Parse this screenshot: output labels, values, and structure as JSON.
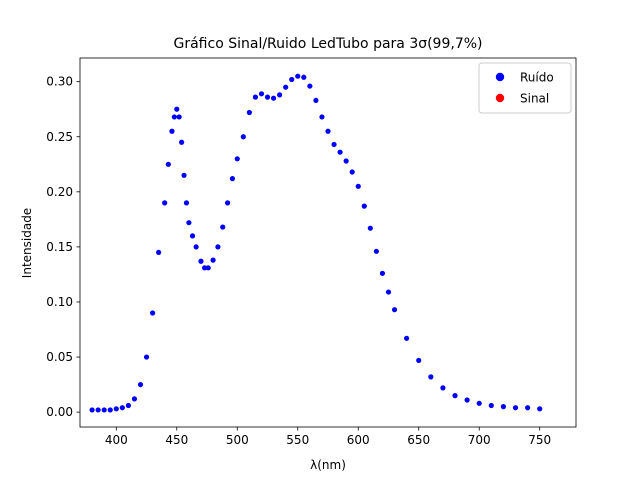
{
  "chart_data": {
    "type": "scatter",
    "title": "Gráfico Sinal/Ruido LedTubo para 3σ(99,7%)",
    "xlabel": "λ(nm)",
    "ylabel": "Intensidade",
    "xlim": [
      370,
      780
    ],
    "ylim": [
      -0.0135,
      0.3215
    ],
    "xticks": [
      400,
      450,
      500,
      550,
      600,
      650,
      700,
      750
    ],
    "yticks": [
      0.0,
      0.05,
      0.1,
      0.15,
      0.2,
      0.25,
      0.3
    ],
    "xtick_labels": [
      "400",
      "450",
      "500",
      "550",
      "600",
      "650",
      "700",
      "750"
    ],
    "ytick_labels": [
      "0.00",
      "0.05",
      "0.10",
      "0.15",
      "0.20",
      "0.25",
      "0.30"
    ],
    "grid": false,
    "legend_position": "top-right",
    "series": [
      {
        "name": "Ruído",
        "color": "#0000ff",
        "x": [
          380,
          385,
          390,
          395,
          400,
          405,
          410,
          415,
          420,
          425,
          430,
          435,
          440,
          443,
          446,
          448,
          450,
          452,
          454,
          456,
          458,
          460,
          463,
          466,
          470,
          473,
          476,
          480,
          484,
          488,
          492,
          496,
          500,
          505,
          510,
          515,
          520,
          525,
          530,
          535,
          540,
          545,
          550,
          555,
          560,
          565,
          570,
          575,
          580,
          585,
          590,
          595,
          600,
          605,
          610,
          615,
          620,
          625,
          630,
          640,
          650,
          660,
          670,
          680,
          690,
          700,
          710,
          720,
          730,
          740,
          750
        ],
        "y": [
          0.002,
          0.002,
          0.002,
          0.002,
          0.003,
          0.004,
          0.006,
          0.012,
          0.025,
          0.05,
          0.09,
          0.145,
          0.19,
          0.225,
          0.255,
          0.268,
          0.275,
          0.268,
          0.245,
          0.215,
          0.19,
          0.172,
          0.16,
          0.15,
          0.137,
          0.131,
          0.131,
          0.138,
          0.15,
          0.168,
          0.19,
          0.212,
          0.23,
          0.25,
          0.272,
          0.286,
          0.289,
          0.286,
          0.285,
          0.288,
          0.295,
          0.302,
          0.305,
          0.304,
          0.296,
          0.283,
          0.268,
          0.255,
          0.243,
          0.236,
          0.228,
          0.218,
          0.205,
          0.187,
          0.167,
          0.146,
          0.126,
          0.109,
          0.093,
          0.067,
          0.047,
          0.032,
          0.022,
          0.015,
          0.011,
          0.008,
          0.006,
          0.005,
          0.004,
          0.004,
          0.003
        ]
      },
      {
        "name": "Sinal",
        "color": "#ff0000",
        "x": [],
        "y": []
      }
    ]
  }
}
